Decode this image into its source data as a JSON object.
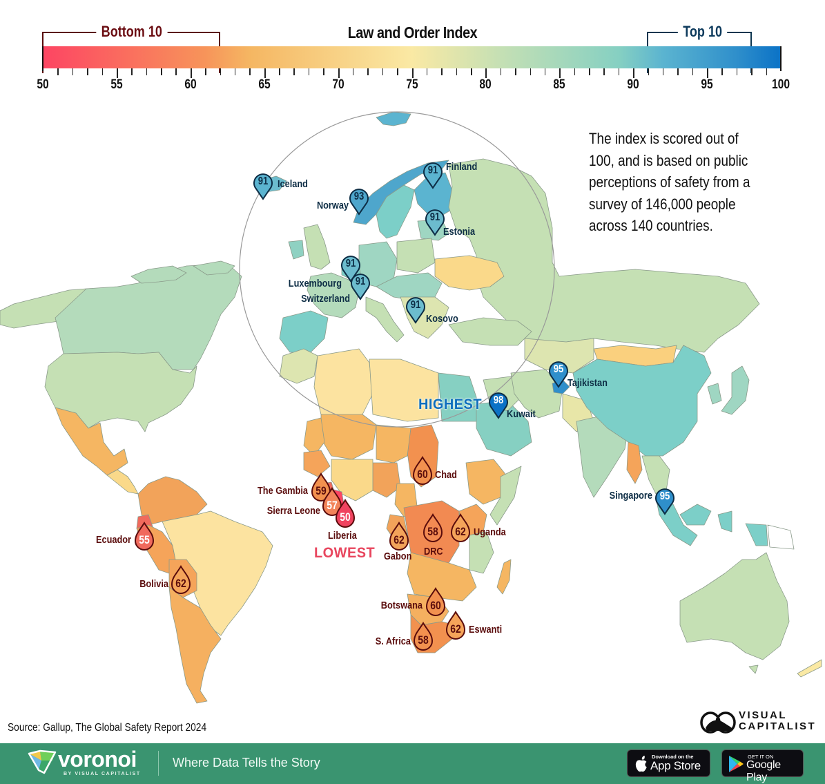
{
  "legend": {
    "title": "Law and Order Index",
    "bottom_bracket_label": "Bottom 10",
    "top_bracket_label": "Top 10",
    "bottom_range": [
      50,
      62
    ],
    "top_range": [
      91,
      98
    ],
    "scale_min": 50,
    "scale_max": 100,
    "tick_labels": [
      "50",
      "55",
      "60",
      "65",
      "70",
      "75",
      "80",
      "85",
      "90",
      "95",
      "100"
    ],
    "gradient_colors": [
      "#fd4563",
      "#f7945a",
      "#f5b662",
      "#fae9a4",
      "#c5e0b4",
      "#86d0c2",
      "#5bb4d0",
      "#2f8fcb",
      "#0b72c6"
    ]
  },
  "note": "The index is scored out of 100, and is based on public perceptions of safety from a survey of 146,000 people across 140 countries.",
  "callouts": {
    "highest": "HIGHEST",
    "lowest": "LOWEST"
  },
  "top10": [
    {
      "country": "Iceland",
      "value": "91"
    },
    {
      "country": "Norway",
      "value": "93"
    },
    {
      "country": "Finland",
      "value": "91"
    },
    {
      "country": "Estonia",
      "value": "91"
    },
    {
      "country": "Luxembourg",
      "value": "91"
    },
    {
      "country": "Switzerland",
      "value": "91"
    },
    {
      "country": "Kosovo",
      "value": "91"
    },
    {
      "country": "Tajikistan",
      "value": "95"
    },
    {
      "country": "Kuwait",
      "value": "98"
    },
    {
      "country": "Singapore",
      "value": "95"
    }
  ],
  "bottom10": [
    {
      "country": "The Gambia",
      "value": "59"
    },
    {
      "country": "Sierra Leone",
      "value": "57"
    },
    {
      "country": "Liberia",
      "value": "50"
    },
    {
      "country": "Chad",
      "value": "60"
    },
    {
      "country": "Gabon",
      "value": "62"
    },
    {
      "country": "DRC",
      "value": "58"
    },
    {
      "country": "Uganda",
      "value": "62"
    },
    {
      "country": "Ecuador",
      "value": "55"
    },
    {
      "country": "Bolivia",
      "value": "62"
    },
    {
      "country": "Botswana",
      "value": "60"
    },
    {
      "country": "Eswanti",
      "value": "62"
    },
    {
      "country": "S. Africa",
      "value": "58"
    }
  ],
  "source": "Source: Gallup, The Global Safety Report 2024",
  "brand": {
    "visual_capitalist": [
      "VISUAL",
      "CAPITALIST"
    ],
    "voronoi": "voronoi",
    "voronoi_sub": "BY VISUAL CAPITALIST",
    "tagline": "Where Data Tells the Story",
    "app_store_small": "Download on the",
    "app_store_big": "App Store",
    "google_play_small": "GET IT ON",
    "google_play_big": "Google Play"
  },
  "colors": {
    "top_text": "#0d2d45",
    "bottom_text": "#5a0c0c",
    "highest": "#0f6fbd",
    "lowest": "#e8465e",
    "footer_bg": "#3a9470"
  },
  "chart_data": {
    "type": "choropleth-map",
    "title": "Law and Order Index",
    "scale": [
      50,
      100
    ],
    "highlighted": {
      "top": {
        "Iceland": 91,
        "Norway": 93,
        "Finland": 91,
        "Estonia": 91,
        "Luxembourg": 91,
        "Switzerland": 91,
        "Kosovo": 91,
        "Tajikistan": 95,
        "Kuwait": 98,
        "Singapore": 95
      },
      "bottom": {
        "The Gambia": 59,
        "Sierra Leone": 57,
        "Liberia": 50,
        "Chad": 60,
        "Gabon": 62,
        "DRC": 58,
        "Uganda": 62,
        "Ecuador": 55,
        "Bolivia": 62,
        "Botswana": 60,
        "Eswanti": 62,
        "S. Africa": 58
      }
    },
    "highest": {
      "country": "Kuwait",
      "value": 98
    },
    "lowest": {
      "country": "Liberia",
      "value": 50
    }
  }
}
